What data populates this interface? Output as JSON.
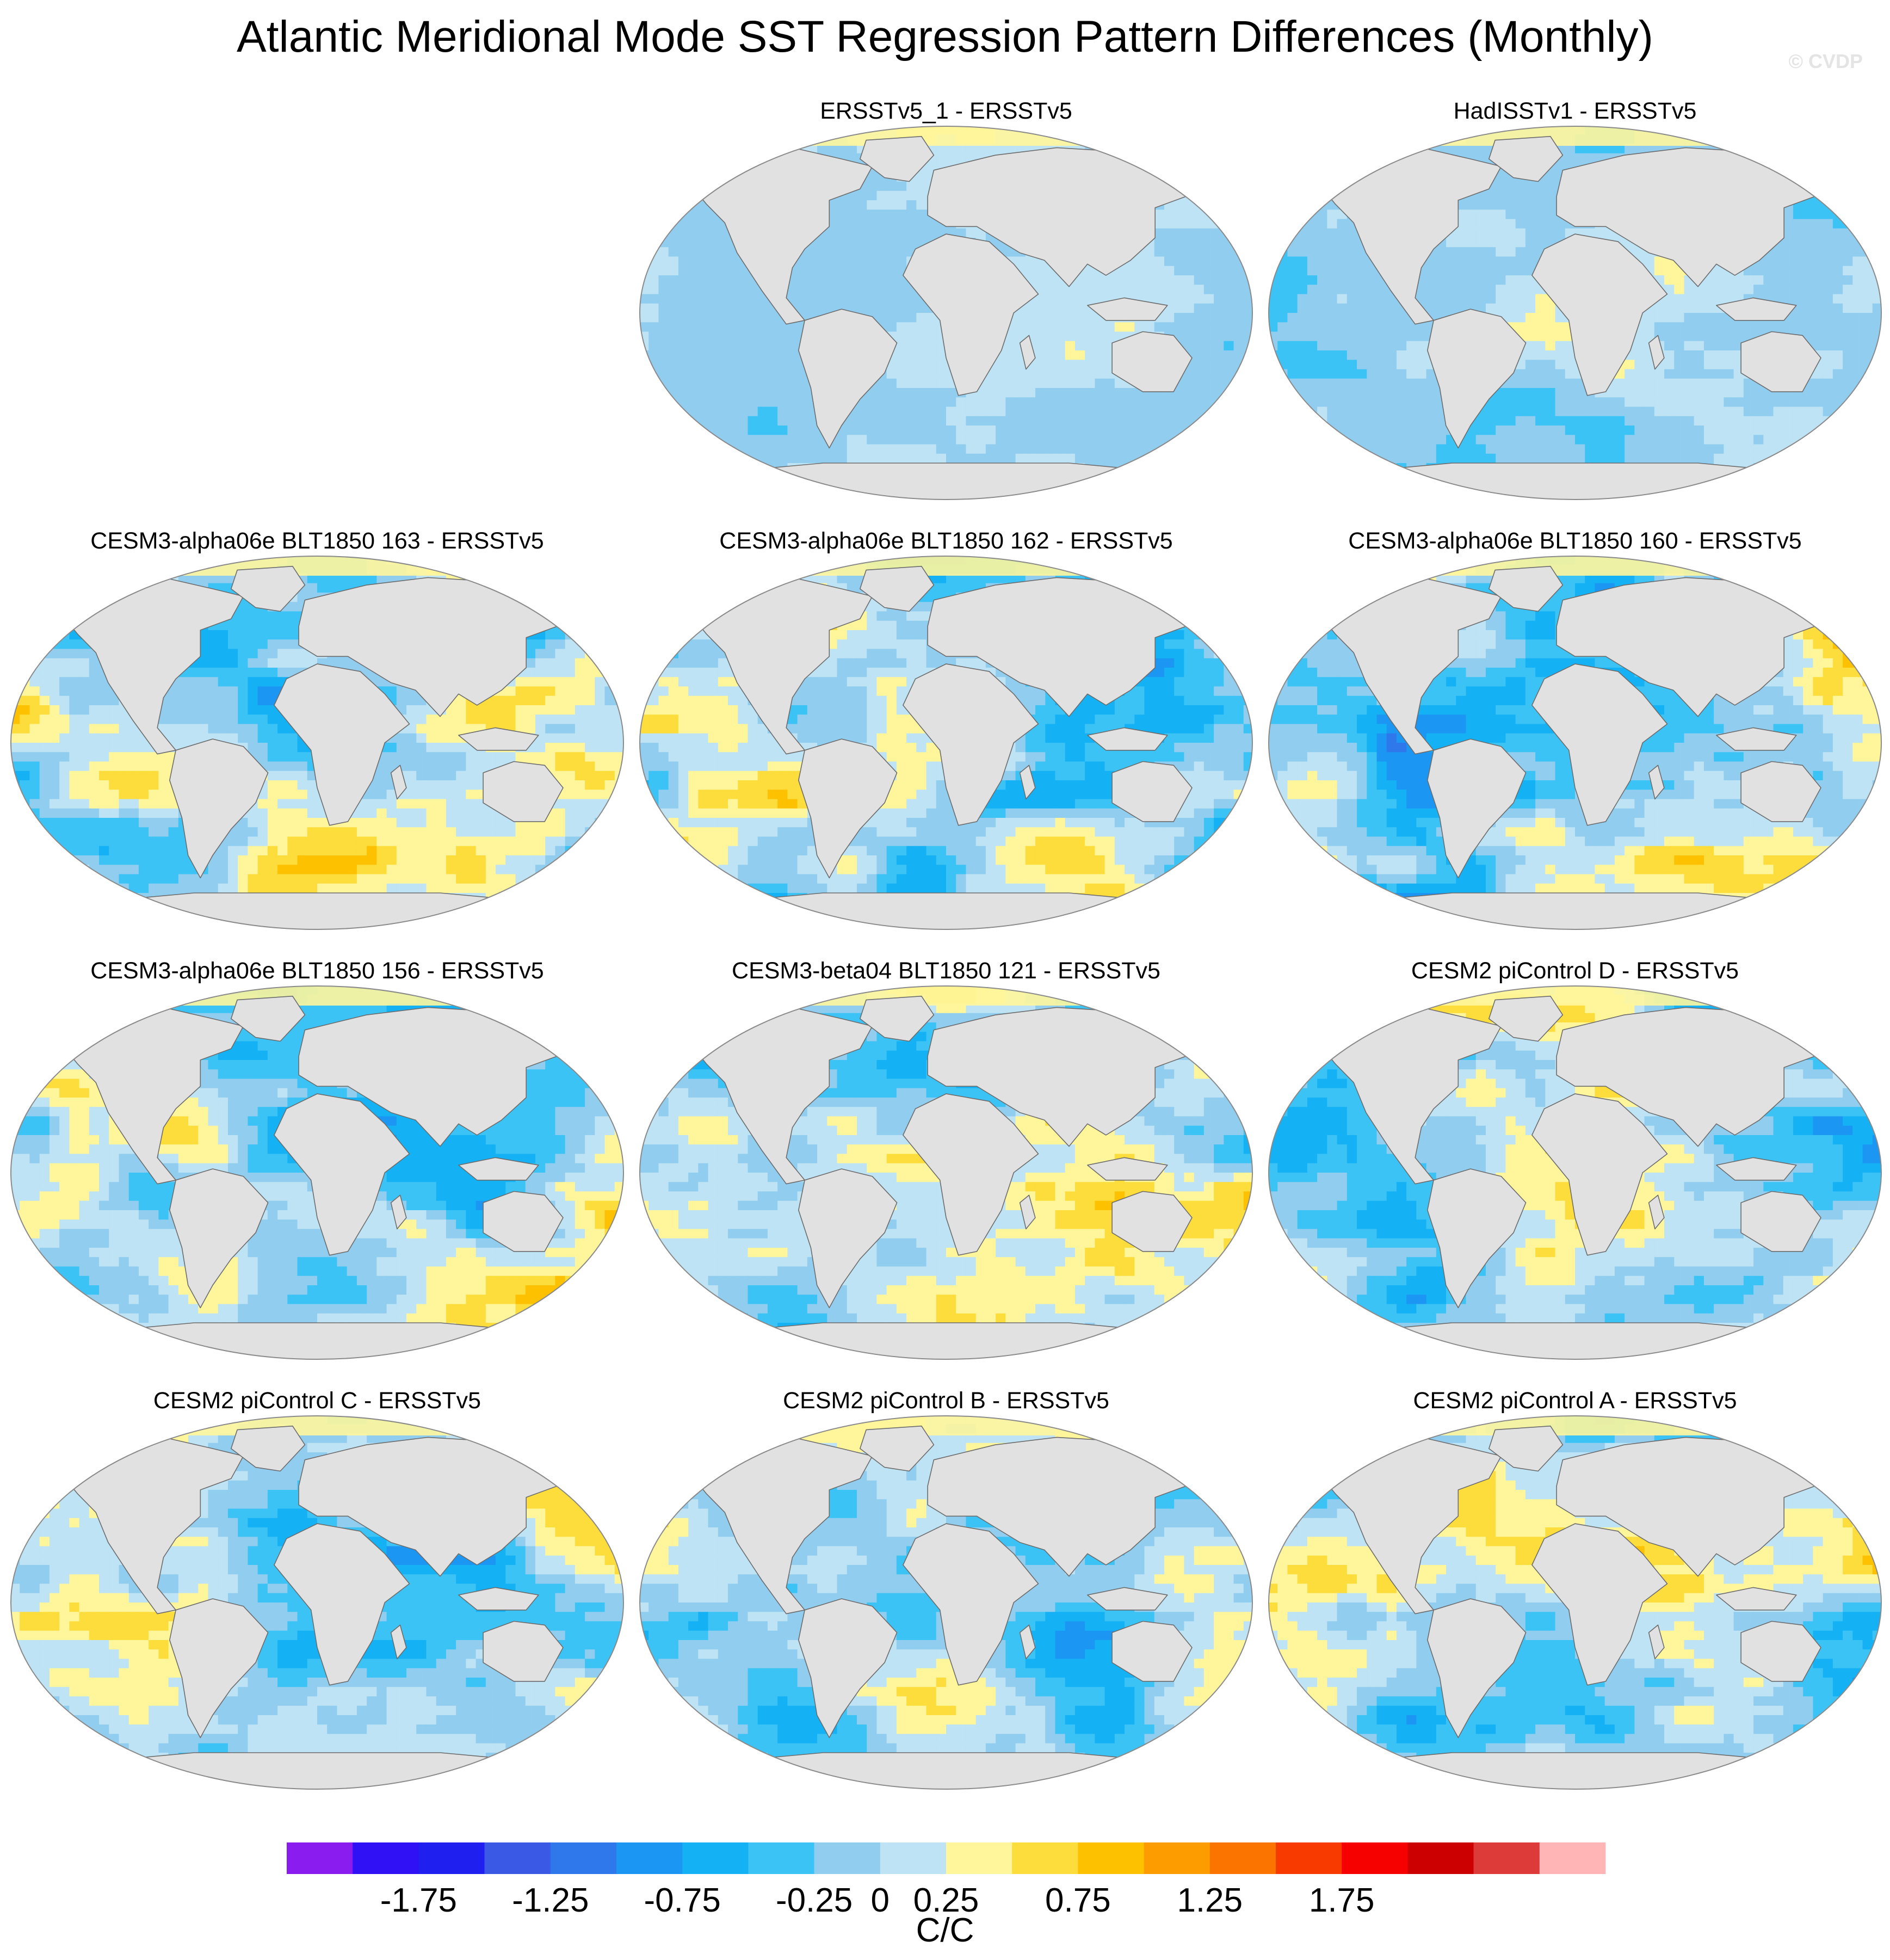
{
  "title": "Atlantic Meridional Mode SST Regression Pattern Differences (Monthly)",
  "copyright": "© CVDP",
  "chart_data": {
    "type": "heatmap",
    "projection": "robinson-like world maps",
    "units": "C/C",
    "colorbar": {
      "levels": [
        -2.0,
        -1.75,
        -1.5,
        -1.25,
        -1.0,
        -0.75,
        -0.5,
        -0.25,
        0,
        0.25,
        0.5,
        0.75,
        1.0,
        1.25,
        1.5,
        1.75,
        2.0
      ],
      "tick_labels": [
        "-1.75",
        "-1.25",
        "-0.75",
        "-0.25",
        "0",
        "0.25",
        "0.75",
        "1.25",
        "1.75"
      ],
      "tick_boundary_index": [
        1,
        3,
        5,
        7,
        8,
        9,
        11,
        13,
        15
      ],
      "colors": [
        "#8a1cf0",
        "#3010f5",
        "#1f1ff0",
        "#3a5ae6",
        "#2e78ec",
        "#1c96f3",
        "#14b2f5",
        "#3cc3f5",
        "#90cdef",
        "#bde3f5",
        "#fff69c",
        "#fcdd3c",
        "#fdc100",
        "#fc9c00",
        "#fb7400",
        "#f93a00",
        "#f70000",
        "#cc0000",
        "#dd3a3a",
        "#ffb5b5"
      ]
    },
    "panels": [
      {
        "title": "ERSSTv5_1 - ERSSTv5",
        "row": 0,
        "col": 1,
        "seed": 11,
        "amp": 0.16
      },
      {
        "title": "HadISSTv1 - ERSSTv5",
        "row": 0,
        "col": 2,
        "seed": 23,
        "amp": 0.22
      },
      {
        "title": "CESM3-alpha06e BLT1850 163 - ERSSTv5",
        "row": 1,
        "col": 0,
        "seed": 37,
        "amp": 0.42
      },
      {
        "title": "CESM3-alpha06e BLT1850 162 - ERSSTv5",
        "row": 1,
        "col": 1,
        "seed": 41,
        "amp": 0.5
      },
      {
        "title": "CESM3-alpha06e BLT1850 160 - ERSSTv5",
        "row": 1,
        "col": 2,
        "seed": 53,
        "amp": 0.46
      },
      {
        "title": "CESM3-alpha06e BLT1850 156 - ERSSTv5",
        "row": 2,
        "col": 0,
        "seed": 67,
        "amp": 0.42
      },
      {
        "title": "CESM3-beta04 BLT1850 121 - ERSSTv5",
        "row": 2,
        "col": 1,
        "seed": 71,
        "amp": 0.4
      },
      {
        "title": "CESM2 piControl D - ERSSTv5",
        "row": 2,
        "col": 2,
        "seed": 83,
        "amp": 0.38
      },
      {
        "title": "CESM2 piControl C - ERSSTv5",
        "row": 3,
        "col": 0,
        "seed": 97,
        "amp": 0.38
      },
      {
        "title": "CESM2 piControl B - ERSSTv5",
        "row": 3,
        "col": 1,
        "seed": 101,
        "amp": 0.4
      },
      {
        "title": "CESM2 piControl A - ERSSTv5",
        "row": 3,
        "col": 2,
        "seed": 113,
        "amp": 0.4
      }
    ]
  }
}
